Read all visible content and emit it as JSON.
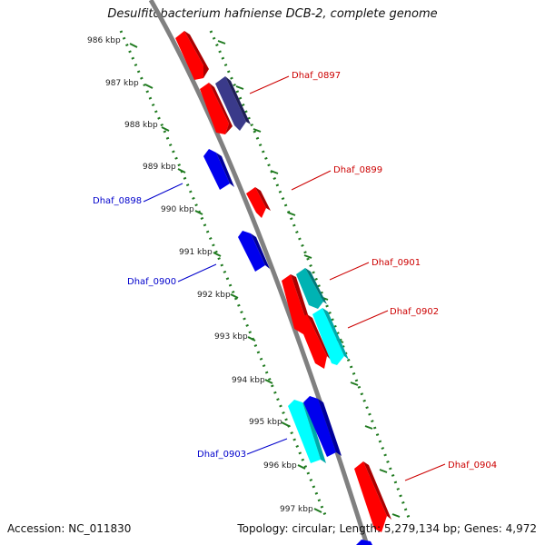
{
  "title": "Desulfitobacterium hafniense DCB-2, complete genome",
  "footer": {
    "accession": "Accession: NC_011830",
    "summary": "Topology: circular; Length: 5,279,134 bp; Genes: 4,972"
  },
  "colors": {
    "forward_gene": "#ff0000",
    "forward_label": "#cc0000",
    "reverse_gene": "#0000ee",
    "reverse_label": "#0000cc",
    "rna_or_other": "#00ffff",
    "dark_gene": "#3a3a8a",
    "teal_gene": "#00b3b3",
    "tick": "#1f7a1f",
    "backbone": "#808080"
  },
  "scale": {
    "unit": "kbp",
    "ticks": [
      "986 kbp",
      "987 kbp",
      "988 kbp",
      "989 kbp",
      "990 kbp",
      "991 kbp",
      "992 kbp",
      "993 kbp",
      "994 kbp",
      "995 kbp",
      "996 kbp",
      "997 kbp"
    ]
  },
  "genes": [
    {
      "label": "Dhaf_0897",
      "strand": "forward"
    },
    {
      "label": "Dhaf_0898",
      "strand": "reverse"
    },
    {
      "label": "Dhaf_0899",
      "strand": "forward"
    },
    {
      "label": "Dhaf_0900",
      "strand": "reverse"
    },
    {
      "label": "Dhaf_0901",
      "strand": "forward"
    },
    {
      "label": "Dhaf_0902",
      "strand": "forward"
    },
    {
      "label": "Dhaf_0903",
      "strand": "reverse"
    },
    {
      "label": "Dhaf_0904",
      "strand": "forward"
    }
  ]
}
